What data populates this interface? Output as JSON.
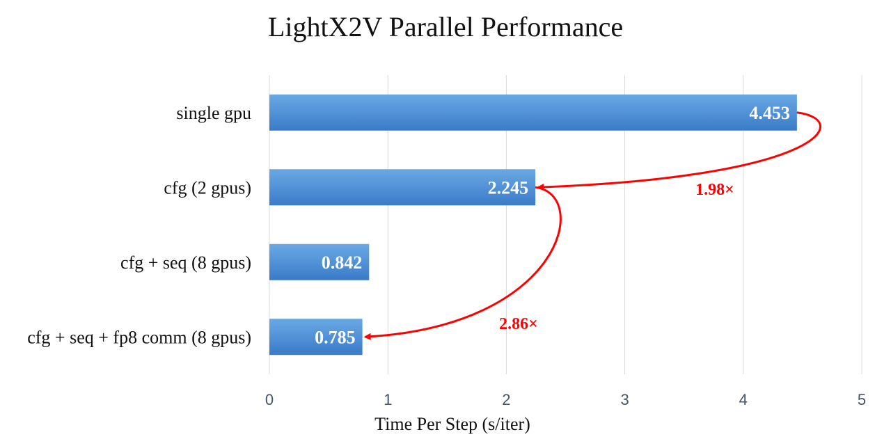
{
  "chart_data": {
    "type": "bar",
    "orientation": "horizontal",
    "title": "LightX2V Parallel Performance",
    "xlabel": "Time Per Step (s/iter)",
    "ylabel": "",
    "categories": [
      "single gpu",
      "cfg (2 gpus)",
      "cfg + seq (8 gpus)",
      "cfg + seq + fp8 comm (8 gpus)"
    ],
    "values": [
      4.453,
      2.245,
      0.842,
      0.785
    ],
    "data_labels": [
      "4.453",
      "2.245",
      "0.842",
      "0.785"
    ],
    "xlim": [
      0,
      5
    ],
    "xticks": [
      "0",
      "1",
      "2",
      "3",
      "4",
      "5"
    ],
    "grid": "vertical",
    "bar_color": "#4a8fd6",
    "bar_color_light": "#6aa8e4",
    "bar_color_dark": "#3a7bc8",
    "annotations": [
      {
        "text": "1.98×",
        "from": "single gpu",
        "to": "cfg (2 gpus)",
        "color": "#ff0000"
      },
      {
        "text": "2.86×",
        "from": "cfg (2 gpus)",
        "to": "cfg + seq + fp8 comm (8 gpus)",
        "color": "#ff0000"
      }
    ]
  }
}
